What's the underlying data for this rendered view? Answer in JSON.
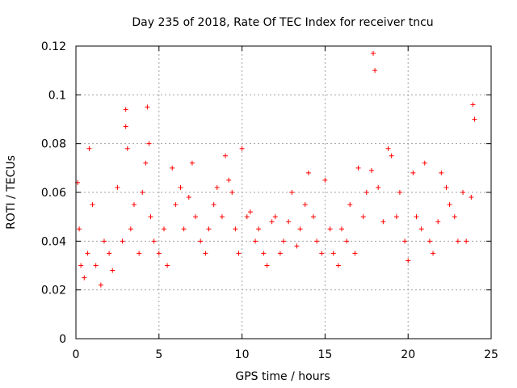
{
  "chart_data": {
    "type": "scatter",
    "title": "Day 235 of 2018, Rate Of TEC Index for receiver tncu",
    "xlabel": "GPS time / hours",
    "ylabel": "ROTI / TECUs",
    "xlim": [
      0,
      25
    ],
    "ylim": [
      0,
      0.12
    ],
    "x_ticks": [
      0,
      5,
      10,
      15,
      20,
      25
    ],
    "y_ticks": [
      0,
      0.02,
      0.04,
      0.06,
      0.08,
      0.1,
      0.12
    ],
    "x_tick_labels": [
      "0",
      "5",
      "10",
      "15",
      "20",
      "25"
    ],
    "y_tick_labels": [
      "0",
      "0.02",
      "0.04",
      "0.06",
      "0.08",
      "0.1",
      "0.12"
    ],
    "grid": true,
    "legend": "none",
    "marker": "plus",
    "series_color": "#ff0000",
    "series": [
      {
        "x": [
          0.1,
          0.2,
          0.3,
          0.5,
          0.7,
          0.8,
          1.0,
          1.2,
          1.5,
          1.7,
          2.0,
          2.2,
          2.5,
          2.8,
          3.0,
          3.0,
          3.1,
          3.3,
          3.5,
          3.8,
          4.0,
          4.2,
          4.3,
          4.4,
          4.5,
          4.7,
          5.0,
          5.3,
          5.5,
          5.8,
          6.0,
          6.3,
          6.5,
          6.8,
          7.0,
          7.2,
          7.5,
          7.8,
          8.0,
          8.3,
          8.5,
          8.8,
          9.0,
          9.2,
          9.4,
          9.6,
          9.8,
          10.0,
          10.3,
          10.5,
          10.8,
          11.0,
          11.3,
          11.5,
          11.8,
          12.0,
          12.3,
          12.5,
          12.8,
          13.0,
          13.3,
          13.5,
          13.8,
          14.0,
          14.3,
          14.5,
          14.8,
          15.0,
          15.3,
          15.5,
          15.8,
          16.0,
          16.3,
          16.5,
          16.8,
          17.0,
          17.3,
          17.5,
          17.8,
          17.9,
          18.0,
          18.2,
          18.5,
          18.8,
          19.0,
          19.3,
          19.5,
          19.8,
          20.0,
          20.3,
          20.5,
          20.8,
          21.0,
          21.3,
          21.5,
          21.8,
          22.0,
          22.3,
          22.5,
          22.8,
          23.0,
          23.3,
          23.5,
          23.8,
          23.9,
          24.0
        ],
        "y": [
          0.064,
          0.045,
          0.03,
          0.025,
          0.035,
          0.078,
          0.055,
          0.03,
          0.022,
          0.04,
          0.035,
          0.028,
          0.062,
          0.04,
          0.094,
          0.087,
          0.078,
          0.045,
          0.055,
          0.035,
          0.06,
          0.072,
          0.095,
          0.08,
          0.05,
          0.04,
          0.035,
          0.045,
          0.03,
          0.07,
          0.055,
          0.062,
          0.045,
          0.058,
          0.072,
          0.05,
          0.04,
          0.035,
          0.045,
          0.055,
          0.062,
          0.05,
          0.075,
          0.065,
          0.06,
          0.045,
          0.035,
          0.078,
          0.05,
          0.052,
          0.04,
          0.045,
          0.035,
          0.03,
          0.048,
          0.05,
          0.035,
          0.04,
          0.048,
          0.06,
          0.038,
          0.045,
          0.055,
          0.068,
          0.05,
          0.04,
          0.035,
          0.065,
          0.045,
          0.035,
          0.03,
          0.045,
          0.04,
          0.055,
          0.035,
          0.07,
          0.05,
          0.06,
          0.069,
          0.117,
          0.11,
          0.062,
          0.048,
          0.078,
          0.075,
          0.05,
          0.06,
          0.04,
          0.032,
          0.068,
          0.05,
          0.045,
          0.072,
          0.04,
          0.035,
          0.048,
          0.068,
          0.062,
          0.055,
          0.05,
          0.04,
          0.06,
          0.04,
          0.058,
          0.096,
          0.09
        ]
      }
    ]
  }
}
